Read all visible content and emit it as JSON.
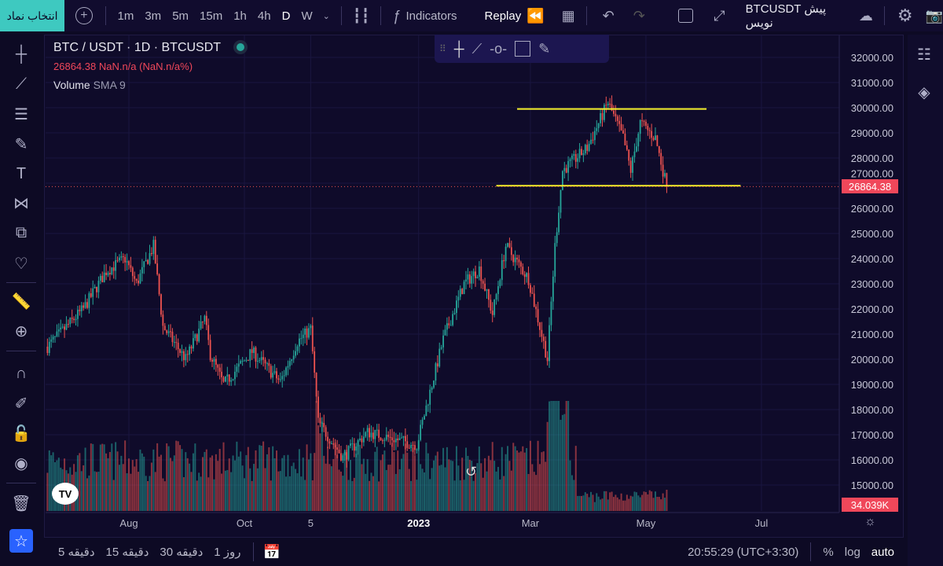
{
  "toolbar": {
    "symbol_select": "انتخاب نماد",
    "intervals": [
      "1m",
      "3m",
      "5m",
      "15m",
      "1h",
      "4h",
      "D",
      "W"
    ],
    "active_interval": "D",
    "indicators": "Indicators",
    "replay": "Replay",
    "layout_name": "BTCUSDT پیش نویس"
  },
  "legend": {
    "title": "BTC / USDT · 1D · BTCUSDT",
    "price_line": "26864.38  NaN.n/a (NaN.n/a%)",
    "volume": "Volume",
    "volume_sma": "SMA 9",
    "status_color": "#26a69a"
  },
  "price_axis": {
    "labels": [
      "32000.00",
      "31000.00",
      "30000.00",
      "29000.00",
      "28000.00",
      "27000.00",
      "26000.00",
      "25000.00",
      "24000.00",
      "23000.00",
      "22000.00",
      "21000.00",
      "20000.00",
      "19000.00",
      "18000.00",
      "17000.00",
      "16000.00",
      "15000.00"
    ],
    "last_price": "26864.38",
    "last_volume": "34.039K"
  },
  "time_axis": {
    "labels": [
      {
        "text": "Aug",
        "date": "2022-08-01"
      },
      {
        "text": "Oct",
        "date": "2022-10-01"
      },
      {
        "text": "5",
        "date": "2022-11-05"
      },
      {
        "text": "2023",
        "date": "2023-01-01"
      },
      {
        "text": "Mar",
        "date": "2023-03-01"
      },
      {
        "text": "May",
        "date": "2023-05-01"
      },
      {
        "text": "Jul",
        "date": "2023-07-01"
      }
    ]
  },
  "bottom": {
    "ranges": [
      "5 دقیقه",
      "15 دقیقه",
      "30 دقیقه",
      "1 روز"
    ],
    "clock": "20:55:29 (UTC+3:30)",
    "percent": "%",
    "log": "log",
    "auto": "auto"
  },
  "colors": {
    "up": "#26a69a",
    "down": "#ef5350",
    "hline": "#f5f02a",
    "accent": "#3ec9c0"
  },
  "chart_data": {
    "type": "candlestick",
    "start": "2022-06-19",
    "end": "2023-05-12",
    "anchors": [
      [
        "2022-06-19",
        20500
      ],
      [
        "2022-07-08",
        22000
      ],
      [
        "2022-07-20",
        23500
      ],
      [
        "2022-07-30",
        24000
      ],
      [
        "2022-08-05",
        23000
      ],
      [
        "2022-08-14",
        24500
      ],
      [
        "2022-08-19",
        21300
      ],
      [
        "2022-08-31",
        20000
      ],
      [
        "2022-09-10",
        21600
      ],
      [
        "2022-09-13",
        20200
      ],
      [
        "2022-09-20",
        19000
      ],
      [
        "2022-10-05",
        20300
      ],
      [
        "2022-10-20",
        19100
      ],
      [
        "2022-10-29",
        20700
      ],
      [
        "2022-11-05",
        21200
      ],
      [
        "2022-11-09",
        17500
      ],
      [
        "2022-11-22",
        16100
      ],
      [
        "2022-12-05",
        17100
      ],
      [
        "2022-12-31",
        16600
      ],
      [
        "2023-01-14",
        20800
      ],
      [
        "2023-01-25",
        23000
      ],
      [
        "2023-02-02",
        23600
      ],
      [
        "2023-02-09",
        21800
      ],
      [
        "2023-02-16",
        24500
      ],
      [
        "2023-02-28",
        23200
      ],
      [
        "2023-03-10",
        20000
      ],
      [
        "2023-03-14",
        24500
      ],
      [
        "2023-03-18",
        27500
      ],
      [
        "2023-03-31",
        28400
      ],
      [
        "2023-04-11",
        30200
      ],
      [
        "2023-04-19",
        28800
      ],
      [
        "2023-04-23",
        27500
      ],
      [
        "2023-04-28",
        29400
      ],
      [
        "2023-05-06",
        28800
      ],
      [
        "2023-05-12",
        26864.38
      ]
    ],
    "horizontal_lines": [
      {
        "price": 29950,
        "from": "2023-02-22",
        "to": "2023-06-02"
      },
      {
        "price": 26900,
        "from": "2023-02-11",
        "to": "2023-06-20"
      }
    ],
    "ylim": [
      15000,
      32000
    ]
  }
}
